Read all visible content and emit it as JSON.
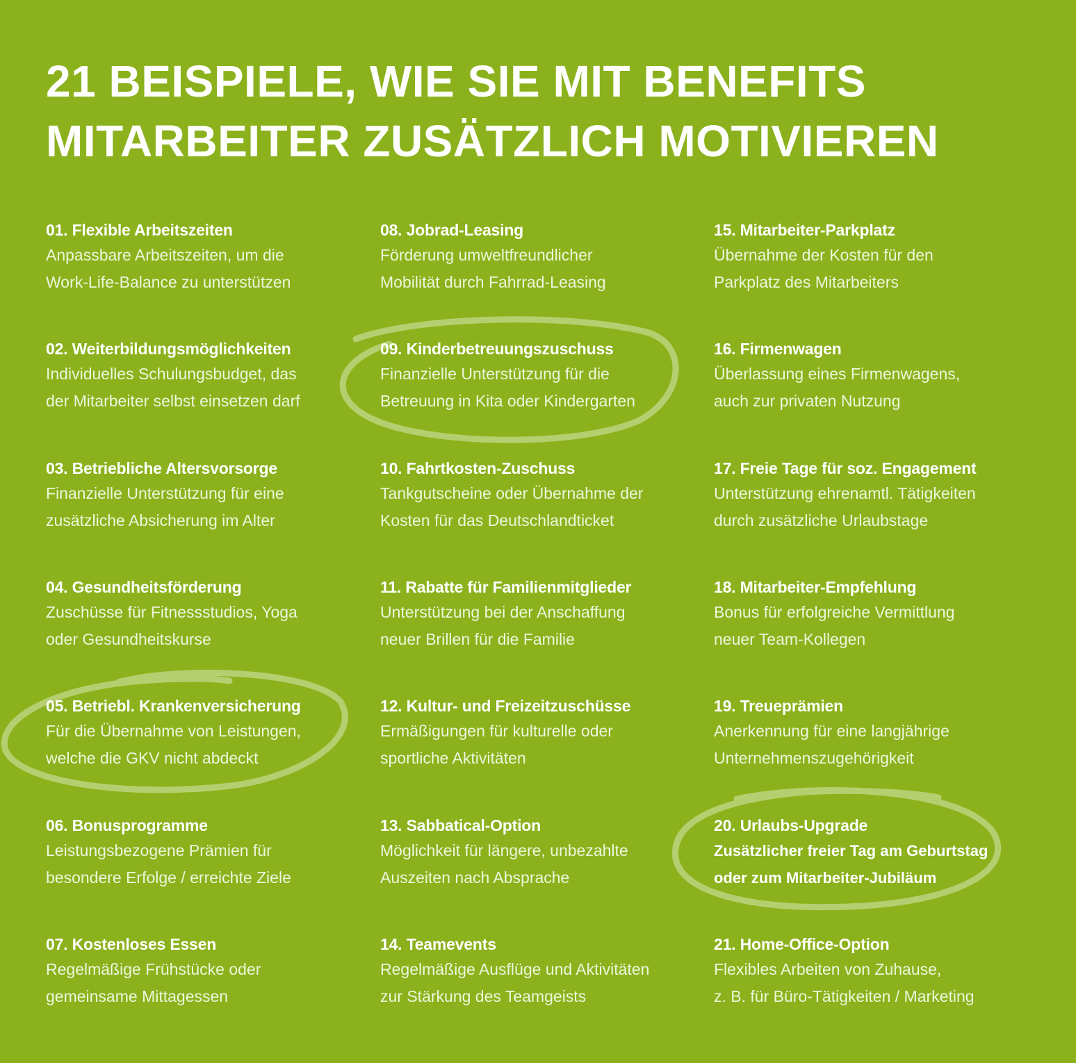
{
  "title": {
    "line1": "21 BEISPIELE, WIE SIE MIT BENEFITS",
    "line2": "MITARBEITER ZUSÄTZLICH MOTIVIEREN"
  },
  "colors": {
    "background": "#8bb21c",
    "text": "#ffffff",
    "circle": "#b9d27a"
  },
  "items": [
    {
      "heading": "01. Flexible Arbeitszeiten",
      "line1": "Anpassbare Arbeitszeiten, um die",
      "line2": "Work-Life-Balance zu unterstützen"
    },
    {
      "heading": "02. Weiterbildungsmöglichkeiten",
      "line1": "Individuelles Schulungsbudget, das",
      "line2": "der Mitarbeiter selbst einsetzen darf"
    },
    {
      "heading": "03. Betriebliche Altersvorsorge",
      "line1": "Finanzielle Unterstützung für eine",
      "line2": "zusätzliche Absicherung im Alter"
    },
    {
      "heading": "04. Gesundheitsförderung",
      "line1": "Zuschüsse für Fitnessstudios, Yoga",
      "line2": "oder Gesundheitskurse"
    },
    {
      "heading": "05. Betriebl. Krankenversicherung",
      "line1": "Für die Übernahme von Leistungen,",
      "line2": "welche die GKV nicht abdeckt"
    },
    {
      "heading": "06. Bonusprogramme",
      "line1": "Leistungsbezogene Prämien für",
      "line2": "besondere Erfolge / erreichte Ziele"
    },
    {
      "heading": "07. Kostenloses Essen",
      "line1": "Regelmäßige Frühstücke oder",
      "line2": "gemeinsame Mittagessen"
    },
    {
      "heading": "08. Jobrad-Leasing",
      "line1": "Förderung umweltfreundlicher",
      "line2": "Mobilität durch Fahrrad-Leasing"
    },
    {
      "heading": "09. Kinderbetreuungszuschuss",
      "line1": "Finanzielle Unterstützung für die",
      "line2": "Betreuung in Kita oder Kindergarten"
    },
    {
      "heading": "10. Fahrtkosten-Zuschuss",
      "line1": "Tankgutscheine oder Übernahme der",
      "line2": "Kosten für das Deutschlandticket"
    },
    {
      "heading": "11. Rabatte für Familienmitglieder",
      "line1": "Unterstützung bei der Anschaffung",
      "line2": "neuer Brillen für die Familie"
    },
    {
      "heading": "12. Kultur- und Freizeitzuschüsse",
      "line1": "Ermäßigungen für kulturelle oder",
      "line2": "sportliche Aktivitäten"
    },
    {
      "heading": "13. Sabbatical-Option",
      "line1": "Möglichkeit für längere, unbezahlte",
      "line2": "Auszeiten nach Absprache"
    },
    {
      "heading": "14. Teamevents",
      "line1": "Regelmäßige Ausflüge und Aktivitäten",
      "line2": "zur Stärkung des Teamgeists"
    },
    {
      "heading": "15. Mitarbeiter-Parkplatz",
      "line1": "Übernahme der Kosten für den",
      "line2": "Parkplatz des Mitarbeiters"
    },
    {
      "heading": "16. Firmenwagen",
      "line1": "Überlassung eines Firmenwagens,",
      "line2": "auch zur privaten Nutzung"
    },
    {
      "heading": "17. Freie Tage für soz. Engagement",
      "line1": "Unterstützung ehrenamtl. Tätigkeiten",
      "line2": "durch zusätzliche Urlaubstage"
    },
    {
      "heading": "18. Mitarbeiter-Empfehlung",
      "line1": "Bonus für erfolgreiche Vermittlung",
      "line2": "neuer Team-Kollegen"
    },
    {
      "heading": "19. Treueprämien",
      "line1": "Anerkennung für eine langjährige",
      "line2": "Unternehmenszugehörigkeit"
    },
    {
      "heading": "20. Urlaubs-Upgrade",
      "line1": "Zusätzlicher freier Tag am Geburtstag",
      "line2": "oder zum Mitarbeiter-Jubiläum"
    },
    {
      "heading": "21. Home-Office-Option",
      "line1": "Flexibles Arbeiten von Zuhause,",
      "line2": "z. B. für Büro-Tätigkeiten / Marketing"
    }
  ]
}
